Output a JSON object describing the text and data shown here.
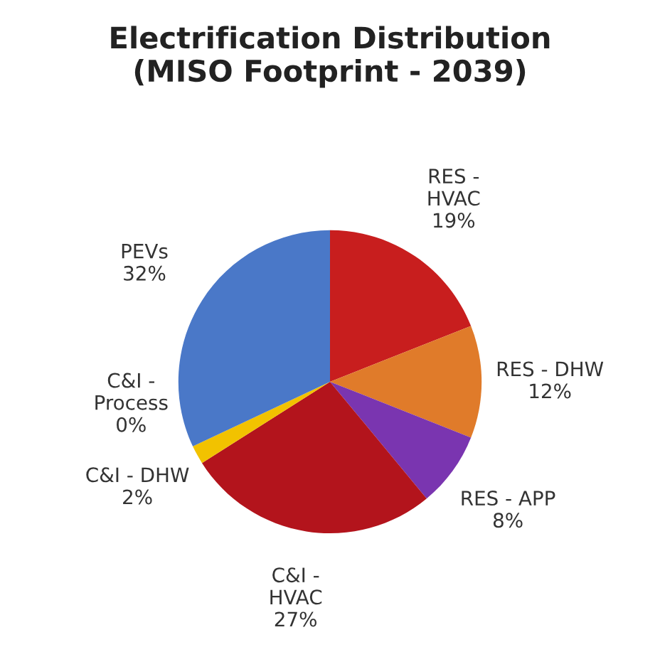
{
  "chart_data": {
    "type": "pie",
    "title": "Electrification Distribution\n(MISO Footprint - 2039)",
    "categories": [
      "RES -\nHVAC",
      "RES - DHW",
      "RES - APP",
      "C&I -\nHVAC",
      "C&I - DHW",
      "C&I -\nProcess",
      "PEVs"
    ],
    "values": [
      19,
      12,
      8,
      27,
      2,
      0,
      32
    ],
    "value_labels": [
      "19%",
      "12%",
      "8%",
      "27%",
      "2%",
      "0%",
      "32%"
    ],
    "colors": [
      "#c81e1e",
      "#e07b2a",
      "#7a35b0",
      "#b3141c",
      "#f2c200",
      "#8aa5d8",
      "#4a78c8"
    ]
  }
}
